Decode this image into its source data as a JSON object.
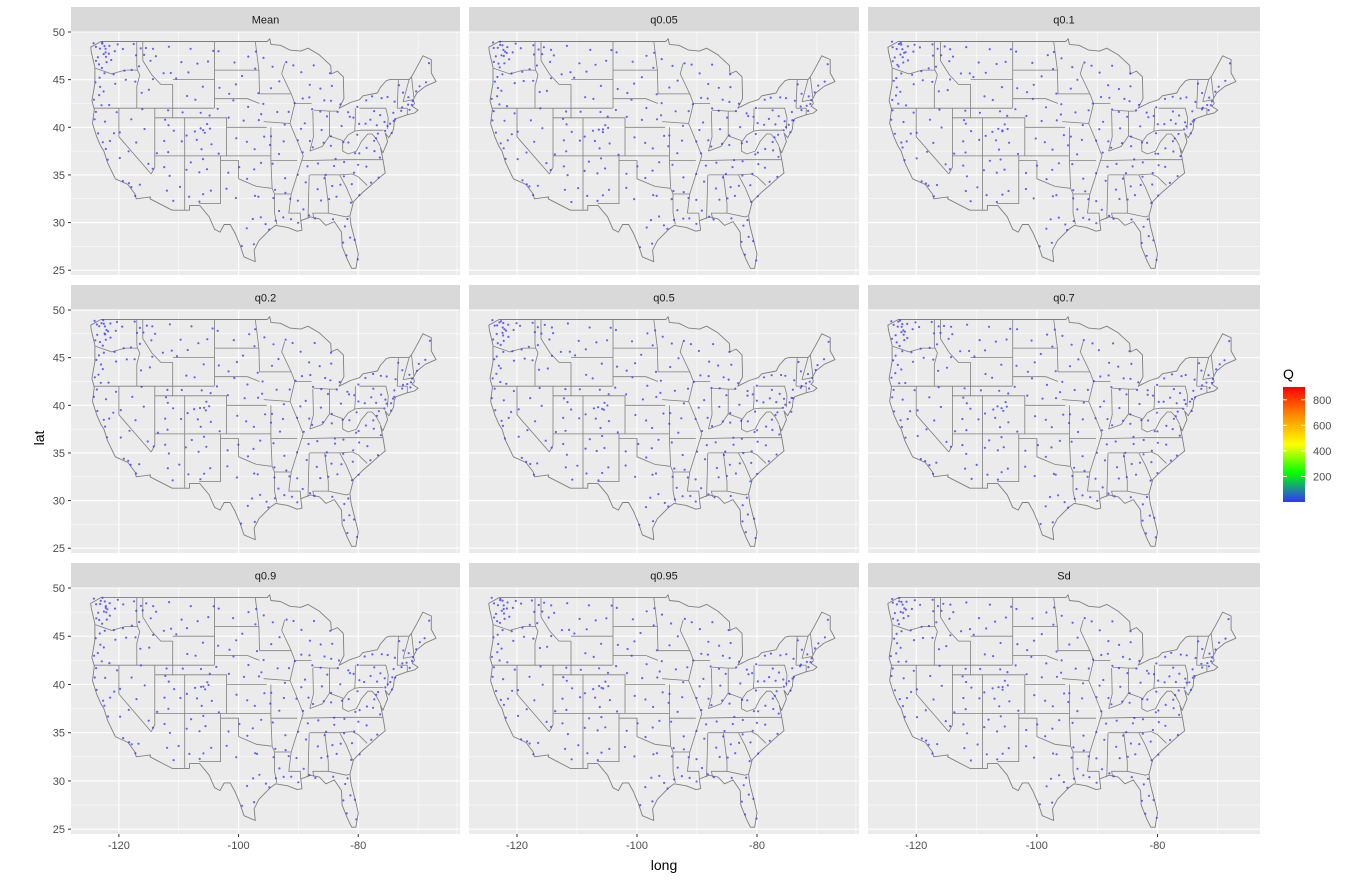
{
  "chart_data": {
    "type": "scatter",
    "subtype": "faceted-map",
    "xlabel": "long",
    "ylabel": "lat",
    "xlim": [
      -128,
      -63
    ],
    "ylim": [
      24.5,
      50
    ],
    "x_ticks": [
      -120,
      -100,
      -80
    ],
    "y_ticks": [
      25,
      30,
      35,
      40,
      45,
      50
    ],
    "grid": true,
    "colors": {
      "panel_bg": "#ebebeb",
      "strip_bg": "#d9d9d9",
      "grid_major": "#ffffff",
      "border": "#7f7f7f",
      "point": "#3333ff"
    },
    "facets": [
      {
        "label": "Mean"
      },
      {
        "label": "q0.05"
      },
      {
        "label": "q0.1"
      },
      {
        "label": "q0.2"
      },
      {
        "label": "q0.5"
      },
      {
        "label": "q0.7"
      },
      {
        "label": "q0.9"
      },
      {
        "label": "q0.95"
      },
      {
        "label": "Sd"
      }
    ],
    "legend": {
      "title": "Q",
      "position": "right",
      "range": [
        0,
        900
      ],
      "ticks": [
        200,
        400,
        600,
        800
      ],
      "gradient": [
        "#3333ff",
        "#00ff00",
        "#ffff00",
        "#ff8c00",
        "#ff0000"
      ]
    },
    "stations": [
      [
        -124.1,
        48.9
      ],
      [
        -123.8,
        48.4
      ],
      [
        -123.2,
        48.3
      ],
      [
        -122.9,
        48.7
      ],
      [
        -122.7,
        48.9
      ],
      [
        -122.4,
        48.6
      ],
      [
        -122.3,
        48.2
      ],
      [
        -122.1,
        47.9
      ],
      [
        -122.5,
        47.6
      ],
      [
        -122.2,
        47.4
      ],
      [
        -121.8,
        47.8
      ],
      [
        -121.5,
        48.5
      ],
      [
        -123.5,
        47.4
      ],
      [
        -123.9,
        46.9
      ],
      [
        -123.2,
        46.6
      ],
      [
        -122.8,
        46.3
      ],
      [
        -122.1,
        46.8
      ],
      [
        -121.4,
        47.1
      ],
      [
        -120.6,
        47.9
      ],
      [
        -120.2,
        48.7
      ],
      [
        -119.4,
        48.3
      ],
      [
        -117.4,
        48.7
      ],
      [
        -117.1,
        47.6
      ],
      [
        -116.4,
        48.2
      ],
      [
        -115.9,
        47.6
      ],
      [
        -115.4,
        48.4
      ],
      [
        -114.3,
        48.2
      ],
      [
        -113.9,
        47.5
      ],
      [
        -114.6,
        46.9
      ],
      [
        -116.6,
        46.4
      ],
      [
        -117.9,
        46.1
      ],
      [
        -119.2,
        45.9
      ],
      [
        -120.8,
        45.6
      ],
      [
        -122.4,
        45.6
      ],
      [
        -123.3,
        45.2
      ],
      [
        -123.8,
        44.8
      ],
      [
        -123.1,
        44.2
      ],
      [
        -122.6,
        43.8
      ],
      [
        -123.4,
        43.3
      ],
      [
        -124.1,
        42.9
      ],
      [
        -122.9,
        42.4
      ],
      [
        -121.7,
        42.3
      ],
      [
        -120.5,
        44.6
      ],
      [
        -118.8,
        44.9
      ],
      [
        -117.3,
        44.8
      ],
      [
        -116.3,
        43.7
      ],
      [
        -114.9,
        43.9
      ],
      [
        -114.3,
        45.1
      ],
      [
        -112.6,
        45.6
      ],
      [
        -111.2,
        45.7
      ],
      [
        -110.4,
        45.2
      ],
      [
        -109.6,
        46.8
      ],
      [
        -108.5,
        45.8
      ],
      [
        -106.8,
        46.6
      ],
      [
        -105.1,
        46.9
      ],
      [
        -104.3,
        48.1
      ],
      [
        -107.9,
        48.2
      ],
      [
        -111.6,
        48.5
      ],
      [
        -103.4,
        47.9
      ],
      [
        -100.8,
        46.8
      ],
      [
        -98.3,
        47.5
      ],
      [
        -97.1,
        47.9
      ],
      [
        -97.3,
        46.2
      ],
      [
        -99.3,
        45.3
      ],
      [
        -100.4,
        44.5
      ],
      [
        -101.6,
        43.6
      ],
      [
        -103.3,
        44.1
      ],
      [
        -105.9,
        44.3
      ],
      [
        -108.6,
        43.2
      ],
      [
        -107.3,
        42.9
      ],
      [
        -106.2,
        41.6
      ],
      [
        -104.8,
        41.2
      ],
      [
        -109.4,
        41.6
      ],
      [
        -111.9,
        41.7
      ],
      [
        -112.2,
        40.8
      ],
      [
        -111.7,
        40.3
      ],
      [
        -110.9,
        39.6
      ],
      [
        -112.3,
        38.6
      ],
      [
        -113.6,
        37.2
      ],
      [
        -111.8,
        37.4
      ],
      [
        -109.6,
        38.6
      ],
      [
        -108.6,
        39.1
      ],
      [
        -107.3,
        39.6
      ],
      [
        -106.4,
        39.8
      ],
      [
        -105.8,
        39.7
      ],
      [
        -105.6,
        39.5
      ],
      [
        -105.3,
        40.3
      ],
      [
        -104.9,
        39.9
      ],
      [
        -106.9,
        38.6
      ],
      [
        -106.2,
        37.7
      ],
      [
        -104.6,
        38.3
      ],
      [
        -103.2,
        37.2
      ],
      [
        -105.9,
        36.7
      ],
      [
        -106.6,
        35.2
      ],
      [
        -105.4,
        35.6
      ],
      [
        -107.9,
        36.4
      ],
      [
        -108.7,
        35.5
      ],
      [
        -104.7,
        33.4
      ],
      [
        -105.8,
        32.9
      ],
      [
        -106.5,
        32.2
      ],
      [
        -108.3,
        32.8
      ],
      [
        -109.9,
        33.7
      ],
      [
        -111.9,
        33.4
      ],
      [
        -110.9,
        32.2
      ],
      [
        -111.6,
        34.9
      ],
      [
        -112.3,
        35.9
      ],
      [
        -114.3,
        35.6
      ],
      [
        -115.1,
        36.2
      ],
      [
        -116.6,
        33.9
      ],
      [
        -117.2,
        32.8
      ],
      [
        -117.9,
        33.8
      ],
      [
        -118.4,
        34.1
      ],
      [
        -119.2,
        34.4
      ],
      [
        -119.8,
        36.7
      ],
      [
        -121.9,
        36.6
      ],
      [
        -122.3,
        37.8
      ],
      [
        -122.6,
        38.4
      ],
      [
        -121.5,
        38.6
      ],
      [
        -120.9,
        39.3
      ],
      [
        -122.2,
        40.6
      ],
      [
        -123.8,
        41.7
      ],
      [
        -124.1,
        40.8
      ],
      [
        -123.6,
        39.4
      ],
      [
        -118.3,
        37.4
      ],
      [
        -117.1,
        38.4
      ],
      [
        -115.8,
        39.9
      ],
      [
        -117.8,
        40.8
      ],
      [
        -119.8,
        39.5
      ],
      [
        -120.4,
        41.5
      ],
      [
        -116.2,
        41.9
      ],
      [
        -100.8,
        42.9
      ],
      [
        -98.4,
        42.1
      ],
      [
        -96.7,
        40.8
      ],
      [
        -96.1,
        41.3
      ],
      [
        -99.1,
        40.7
      ],
      [
        -101.7,
        41.1
      ],
      [
        -103.6,
        41.9
      ],
      [
        -100.3,
        38.9
      ],
      [
        -98.6,
        38.4
      ],
      [
        -97.4,
        37.7
      ],
      [
        -95.6,
        39.1
      ],
      [
        -94.7,
        38.1
      ],
      [
        -96.3,
        36.3
      ],
      [
        -97.5,
        35.5
      ],
      [
        -98.5,
        34.6
      ],
      [
        -99.9,
        35.9
      ],
      [
        -101.8,
        35.2
      ],
      [
        -101.9,
        33.6
      ],
      [
        -100.4,
        32.5
      ],
      [
        -97.3,
        32.8
      ],
      [
        -96.8,
        32.8
      ],
      [
        -95.4,
        29.8
      ],
      [
        -94.9,
        29.3
      ],
      [
        -97.7,
        30.3
      ],
      [
        -98.5,
        29.4
      ],
      [
        -97.4,
        27.8
      ],
      [
        -99.5,
        27.5
      ],
      [
        -96.4,
        30.6
      ],
      [
        -94.1,
        32.5
      ],
      [
        -93.8,
        30.2
      ],
      [
        -93.3,
        31.3
      ],
      [
        -92.4,
        30.5
      ],
      [
        -91.2,
        30.4
      ],
      [
        -90.1,
        29.9
      ],
      [
        -91.5,
        32.5
      ],
      [
        -92.1,
        33.2
      ],
      [
        -93.9,
        33.4
      ],
      [
        -92.3,
        34.7
      ],
      [
        -94.2,
        36.1
      ],
      [
        -93.2,
        37.2
      ],
      [
        -92.5,
        38.6
      ],
      [
        -90.2,
        38.6
      ],
      [
        -94.5,
        39.1
      ],
      [
        -92.3,
        40.2
      ],
      [
        -93.6,
        41.6
      ],
      [
        -91.5,
        41.7
      ],
      [
        -90.6,
        42.5
      ],
      [
        -95.9,
        42.5
      ],
      [
        -96.8,
        43.5
      ],
      [
        -94.5,
        44.1
      ],
      [
        -93.2,
        44.9
      ],
      [
        -92.1,
        46.8
      ],
      [
        -94.2,
        46.4
      ],
      [
        -95.8,
        47.2
      ],
      [
        -90.9,
        46.5
      ],
      [
        -89.4,
        43.1
      ],
      [
        -88.1,
        43.1
      ],
      [
        -88.1,
        44.5
      ],
      [
        -89.6,
        45.7
      ],
      [
        -87.6,
        41.9
      ],
      [
        -88.9,
        40.5
      ],
      [
        -89.6,
        39.8
      ],
      [
        -88.2,
        38.6
      ],
      [
        -89.2,
        37.3
      ],
      [
        -87.6,
        37.9
      ],
      [
        -86.2,
        39.8
      ],
      [
        -85.1,
        41.1
      ],
      [
        -86.3,
        41.7
      ],
      [
        -84.6,
        42.7
      ],
      [
        -83.1,
        42.4
      ],
      [
        -85.6,
        42.9
      ],
      [
        -84.4,
        44.3
      ],
      [
        -86.4,
        44.1
      ],
      [
        -84.6,
        45.6
      ],
      [
        -87.4,
        46.5
      ],
      [
        -83.5,
        41.7
      ],
      [
        -82.9,
        40.1
      ],
      [
        -84.5,
        39.1
      ],
      [
        -81.7,
        41.5
      ],
      [
        -81.5,
        41.1
      ],
      [
        -80.7,
        41.1
      ],
      [
        -80.1,
        42.1
      ],
      [
        -79.9,
        40.4
      ],
      [
        -78.9,
        40.3
      ],
      [
        -77.9,
        40.8
      ],
      [
        -76.9,
        40.3
      ],
      [
        -75.2,
        40.1
      ],
      [
        -75.5,
        40.6
      ],
      [
        -76.3,
        41.2
      ],
      [
        -77.4,
        41.7
      ],
      [
        -78.8,
        42.9
      ],
      [
        -77.6,
        43.2
      ],
      [
        -76.1,
        43.1
      ],
      [
        -75.2,
        43.1
      ],
      [
        -73.8,
        42.7
      ],
      [
        -74.1,
        41.6
      ],
      [
        -73.9,
        40.8
      ],
      [
        -74.2,
        40.7
      ],
      [
        -74.6,
        40.3
      ],
      [
        -74.4,
        39.4
      ],
      [
        -75.6,
        39.7
      ],
      [
        -76.6,
        39.3
      ],
      [
        -77.0,
        38.9
      ],
      [
        -77.4,
        38.5
      ],
      [
        -77.4,
        37.5
      ],
      [
        -76.3,
        36.9
      ],
      [
        -78.6,
        37.8
      ],
      [
        -79.9,
        37.3
      ],
      [
        -80.4,
        37.2
      ],
      [
        -81.6,
        38.4
      ],
      [
        -80.2,
        39.3
      ],
      [
        -82.6,
        38.4
      ],
      [
        -84.5,
        38.1
      ],
      [
        -85.8,
        38.3
      ],
      [
        -86.8,
        36.2
      ],
      [
        -85.3,
        35.1
      ],
      [
        -84.0,
        35.9
      ],
      [
        -82.4,
        36.4
      ],
      [
        -83.9,
        36.6
      ],
      [
        -88.4,
        35.9
      ],
      [
        -90.1,
        35.1
      ],
      [
        -80.8,
        35.2
      ],
      [
        -79.9,
        36.1
      ],
      [
        -78.6,
        35.8
      ],
      [
        -77.9,
        34.2
      ],
      [
        -76.7,
        34.8
      ],
      [
        -81.0,
        34.0
      ],
      [
        -82.4,
        34.9
      ],
      [
        -79.9,
        32.8
      ],
      [
        -81.1,
        32.1
      ],
      [
        -83.6,
        32.8
      ],
      [
        -84.4,
        33.8
      ],
      [
        -85.0,
        32.5
      ],
      [
        -82.9,
        33.9
      ],
      [
        -86.8,
        33.5
      ],
      [
        -86.3,
        32.4
      ],
      [
        -88.1,
        30.7
      ],
      [
        -85.6,
        34.7
      ],
      [
        -89.2,
        31.3
      ],
      [
        -90.2,
        32.3
      ],
      [
        -88.7,
        34.3
      ],
      [
        -87.2,
        30.4
      ],
      [
        -84.3,
        30.4
      ],
      [
        -81.7,
        30.3
      ],
      [
        -82.5,
        27.9
      ],
      [
        -81.4,
        28.5
      ],
      [
        -80.2,
        26.1
      ],
      [
        -81.9,
        26.6
      ],
      [
        -80.6,
        28.1
      ],
      [
        -82.3,
        29.6
      ],
      [
        -72.7,
        41.8
      ],
      [
        -71.4,
        41.8
      ],
      [
        -71.1,
        42.4
      ],
      [
        -71.8,
        42.3
      ],
      [
        -72.6,
        42.1
      ],
      [
        -73.2,
        44.5
      ],
      [
        -72.6,
        43.6
      ],
      [
        -71.5,
        43.2
      ],
      [
        -70.3,
        43.7
      ],
      [
        -69.8,
        44.3
      ],
      [
        -68.8,
        44.8
      ],
      [
        -68.1,
        46.7
      ],
      [
        -70.9,
        42.8
      ]
    ]
  }
}
